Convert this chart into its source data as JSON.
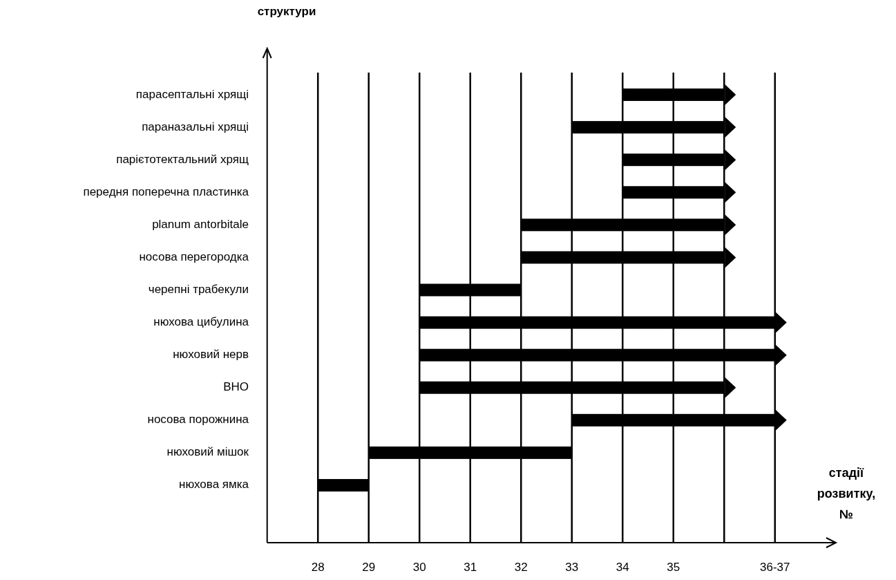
{
  "chart_data": {
    "type": "bar",
    "orientation": "horizontal",
    "ylabel": "структури",
    "xlabel": "стадії розвитку, №",
    "categories": [
      "парасептальні хрящі",
      "параназальні хрящі",
      "парієтотектальний хрящ",
      "передня поперечна пластинка",
      "planum antorbitale",
      "носова перегородка",
      "черепні трабекули",
      "нюхова цибулина",
      "нюховий нерв",
      "ВНО",
      "носова порожнина",
      "нюховий мішок",
      "нюхова ямка"
    ],
    "series": [
      {
        "color": "#000000",
        "marker": "triangle",
        "base": [
          34,
          33,
          34,
          34,
          32,
          32,
          null,
          30,
          30,
          30,
          33,
          null,
          null
        ],
        "values": [
          2,
          3,
          2,
          2,
          4,
          4,
          null,
          7,
          7,
          6,
          4,
          null,
          null
        ]
      },
      {
        "color": "#000000",
        "marker": "none",
        "base": [
          null,
          null,
          null,
          null,
          null,
          null,
          30,
          null,
          null,
          null,
          null,
          29,
          28
        ],
        "values": [
          null,
          null,
          null,
          null,
          null,
          null,
          2,
          null,
          null,
          null,
          null,
          4,
          1
        ]
      }
    ],
    "xlim": [
      27,
      38.2
    ],
    "xticks": [
      28,
      29,
      30,
      31,
      32,
      33,
      34,
      35,
      {
        "value": 36,
        "label": null
      },
      {
        "value": 37,
        "label": "36-37"
      }
    ],
    "grid": "x"
  }
}
